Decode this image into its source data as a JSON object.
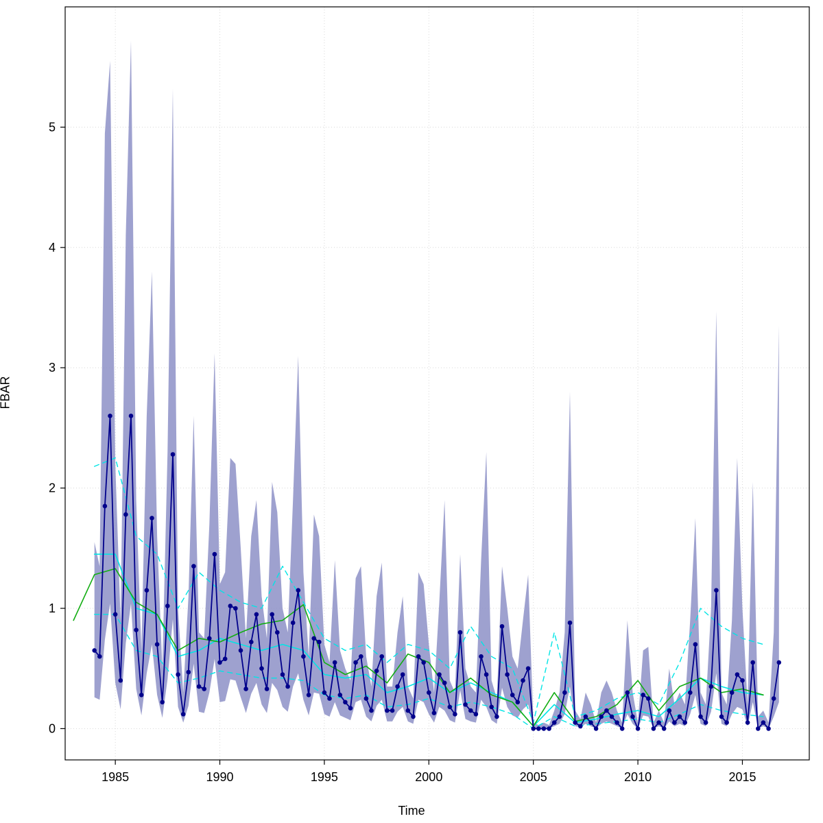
{
  "chart_data": {
    "type": "line",
    "title": "",
    "xlabel": "Time",
    "ylabel": "FBAR",
    "x_ticks": [
      1985,
      1990,
      1995,
      2000,
      2005,
      2010,
      2015
    ],
    "y_ticks": [
      0,
      1,
      2,
      3,
      4,
      5
    ],
    "xlim": [
      1982.6,
      2018.2
    ],
    "ylim": [
      -0.26,
      6.0
    ],
    "grid": "dotted",
    "grid_color": "#d8d8d8",
    "band": {
      "name": "confidence-band",
      "color": "#8d91c7",
      "opacity": 0.85,
      "x_start": 1984.0,
      "x_step": 0.25,
      "upper": [
        1.55,
        1.35,
        4.95,
        5.55,
        2.2,
        0.9,
        4.1,
        5.72,
        1.9,
        0.65,
        2.6,
        3.8,
        1.6,
        0.5,
        2.3,
        5.32,
        1.0,
        0.3,
        1.1,
        2.6,
        0.8,
        0.75,
        1.7,
        3.12,
        1.2,
        1.3,
        2.25,
        2.2,
        1.5,
        0.75,
        1.6,
        1.9,
        1.1,
        0.75,
        2.05,
        1.8,
        1.0,
        0.8,
        1.9,
        3.1,
        1.3,
        0.6,
        1.78,
        1.6,
        0.7,
        0.55,
        1.4,
        0.65,
        0.5,
        0.4,
        1.25,
        1.35,
        0.6,
        0.35,
        1.1,
        1.38,
        0.35,
        0.35,
        0.8,
        1.1,
        0.35,
        0.25,
        1.3,
        1.2,
        0.7,
        0.3,
        1.05,
        1.9,
        0.4,
        0.3,
        1.45,
        0.5,
        0.35,
        0.3,
        1.4,
        2.3,
        0.4,
        0.25,
        1.35,
        1.0,
        0.6,
        0.5,
        0.9,
        1.28,
        0.05,
        0.03,
        0.05,
        0.03,
        0.15,
        0.3,
        0.8,
        2.8,
        0.15,
        0.08,
        0.3,
        0.2,
        0.05,
        0.3,
        0.4,
        0.3,
        0.15,
        0.05,
        0.9,
        0.3,
        0.05,
        0.65,
        0.68,
        0.05,
        0.15,
        0.05,
        0.5,
        0.2,
        0.3,
        0.2,
        0.9,
        1.75,
        0.3,
        0.2,
        1.0,
        3.47,
        0.3,
        0.2,
        0.9,
        2.25,
        1.0,
        0.2,
        2.05,
        0.1,
        0.15,
        0.05,
        0.8,
        3.35
      ],
      "lower": [
        0.26,
        0.24,
        0.74,
        1.04,
        0.38,
        0.16,
        0.71,
        1.04,
        0.33,
        0.11,
        0.46,
        0.7,
        0.28,
        0.09,
        0.41,
        0.91,
        0.18,
        0.05,
        0.19,
        0.54,
        0.14,
        0.13,
        0.3,
        0.58,
        0.22,
        0.23,
        0.41,
        0.4,
        0.26,
        0.13,
        0.29,
        0.38,
        0.2,
        0.13,
        0.38,
        0.32,
        0.18,
        0.14,
        0.35,
        0.46,
        0.24,
        0.11,
        0.3,
        0.29,
        0.12,
        0.1,
        0.22,
        0.11,
        0.09,
        0.07,
        0.22,
        0.24,
        0.1,
        0.06,
        0.19,
        0.24,
        0.06,
        0.06,
        0.14,
        0.18,
        0.06,
        0.04,
        0.24,
        0.22,
        0.12,
        0.05,
        0.18,
        0.15,
        0.07,
        0.05,
        0.32,
        0.08,
        0.06,
        0.05,
        0.24,
        0.18,
        0.07,
        0.04,
        0.34,
        0.18,
        0.11,
        0.09,
        0.16,
        0.2,
        0.0,
        0.0,
        0.0,
        0.0,
        0.02,
        0.04,
        0.12,
        0.35,
        0.02,
        0.01,
        0.04,
        0.02,
        0.0,
        0.04,
        0.06,
        0.04,
        0.02,
        0.0,
        0.12,
        0.04,
        0.0,
        0.11,
        0.1,
        0.0,
        0.02,
        0.0,
        0.06,
        0.02,
        0.04,
        0.02,
        0.12,
        0.28,
        0.04,
        0.02,
        0.14,
        0.46,
        0.04,
        0.02,
        0.12,
        0.18,
        0.16,
        0.02,
        0.22,
        0.0,
        0.02,
        0.0,
        0.1,
        0.22
      ]
    },
    "series": [
      {
        "name": "cyan-lower-dashed",
        "color": "#00e5e5",
        "style": "dashed",
        "width": 1.4,
        "points": false,
        "x_start": 1984,
        "x_step": 1,
        "values": [
          0.95,
          0.95,
          0.65,
          0.6,
          0.38,
          0.42,
          0.48,
          0.45,
          0.42,
          0.42,
          0.4,
          0.28,
          0.25,
          0.28,
          0.18,
          0.2,
          0.25,
          0.18,
          0.22,
          0.18,
          0.12,
          0.0,
          0.1,
          0.02,
          0.04,
          0.06,
          0.08,
          0.05,
          0.12,
          0.2,
          0.15,
          0.12,
          0.1
        ]
      },
      {
        "name": "cyan-upper-dashed",
        "color": "#00e5e5",
        "style": "dashed",
        "width": 1.4,
        "points": false,
        "x_start": 1984,
        "x_step": 1,
        "values": [
          2.18,
          2.25,
          1.6,
          1.45,
          1.0,
          1.3,
          1.15,
          1.05,
          1.0,
          1.35,
          1.05,
          0.75,
          0.65,
          0.7,
          0.55,
          0.7,
          0.65,
          0.5,
          0.85,
          0.6,
          0.5,
          0.05,
          0.8,
          0.1,
          0.15,
          0.25,
          0.3,
          0.2,
          0.55,
          1.0,
          0.85,
          0.75,
          0.7
        ]
      },
      {
        "name": "cyan-median-annual",
        "color": "#00e5e5",
        "style": "solid",
        "width": 1.6,
        "points": false,
        "x_start": 1984,
        "x_step": 1,
        "values": [
          1.45,
          1.45,
          1.0,
          0.95,
          0.6,
          0.65,
          0.75,
          0.7,
          0.65,
          0.7,
          0.65,
          0.45,
          0.42,
          0.45,
          0.3,
          0.35,
          0.42,
          0.3,
          0.38,
          0.3,
          0.22,
          0.02,
          0.2,
          0.05,
          0.08,
          0.12,
          0.15,
          0.1,
          0.25,
          0.42,
          0.35,
          0.3,
          0.28
        ]
      },
      {
        "name": "green-annual-mean",
        "color": "#12ad12",
        "style": "solid",
        "width": 1.6,
        "points": false,
        "x_start": 1983,
        "x_step": 1,
        "values": [
          0.9,
          1.28,
          1.33,
          1.05,
          0.95,
          0.65,
          0.75,
          0.72,
          0.8,
          0.87,
          0.9,
          1.03,
          0.55,
          0.45,
          0.52,
          0.38,
          0.62,
          0.55,
          0.3,
          0.42,
          0.28,
          0.22,
          0.02,
          0.3,
          0.06,
          0.1,
          0.2,
          0.4,
          0.15,
          0.35,
          0.42,
          0.3,
          0.33,
          0.28
        ]
      },
      {
        "name": "observed-quarterly-fbar",
        "color": "#00008b",
        "style": "solid",
        "width": 1.8,
        "points": true,
        "x_start": 1984,
        "x_step": 0.25,
        "values": [
          0.65,
          0.6,
          1.85,
          2.6,
          0.95,
          0.4,
          1.78,
          2.6,
          0.82,
          0.28,
          1.15,
          1.75,
          0.7,
          0.22,
          1.02,
          2.28,
          0.45,
          0.12,
          0.47,
          1.35,
          0.35,
          0.33,
          0.75,
          1.45,
          0.55,
          0.58,
          1.02,
          1.0,
          0.65,
          0.33,
          0.72,
          0.95,
          0.5,
          0.33,
          0.95,
          0.8,
          0.45,
          0.35,
          0.88,
          1.15,
          0.6,
          0.28,
          0.75,
          0.72,
          0.3,
          0.25,
          0.55,
          0.28,
          0.22,
          0.17,
          0.55,
          0.6,
          0.25,
          0.15,
          0.48,
          0.6,
          0.15,
          0.15,
          0.35,
          0.45,
          0.15,
          0.1,
          0.6,
          0.55,
          0.3,
          0.13,
          0.45,
          0.38,
          0.18,
          0.12,
          0.8,
          0.2,
          0.15,
          0.12,
          0.6,
          0.45,
          0.18,
          0.1,
          0.85,
          0.45,
          0.28,
          0.22,
          0.4,
          0.5,
          0.0,
          0.0,
          0.0,
          0.0,
          0.05,
          0.1,
          0.3,
          0.88,
          0.05,
          0.02,
          0.1,
          0.05,
          0.0,
          0.1,
          0.15,
          0.1,
          0.05,
          0.0,
          0.3,
          0.1,
          0.0,
          0.28,
          0.25,
          0.0,
          0.05,
          0.0,
          0.15,
          0.05,
          0.1,
          0.05,
          0.3,
          0.7,
          0.1,
          0.05,
          0.35,
          1.15,
          0.1,
          0.05,
          0.3,
          0.45,
          0.4,
          0.05,
          0.55,
          0.0,
          0.05,
          0.0,
          0.25,
          0.55
        ]
      }
    ]
  }
}
